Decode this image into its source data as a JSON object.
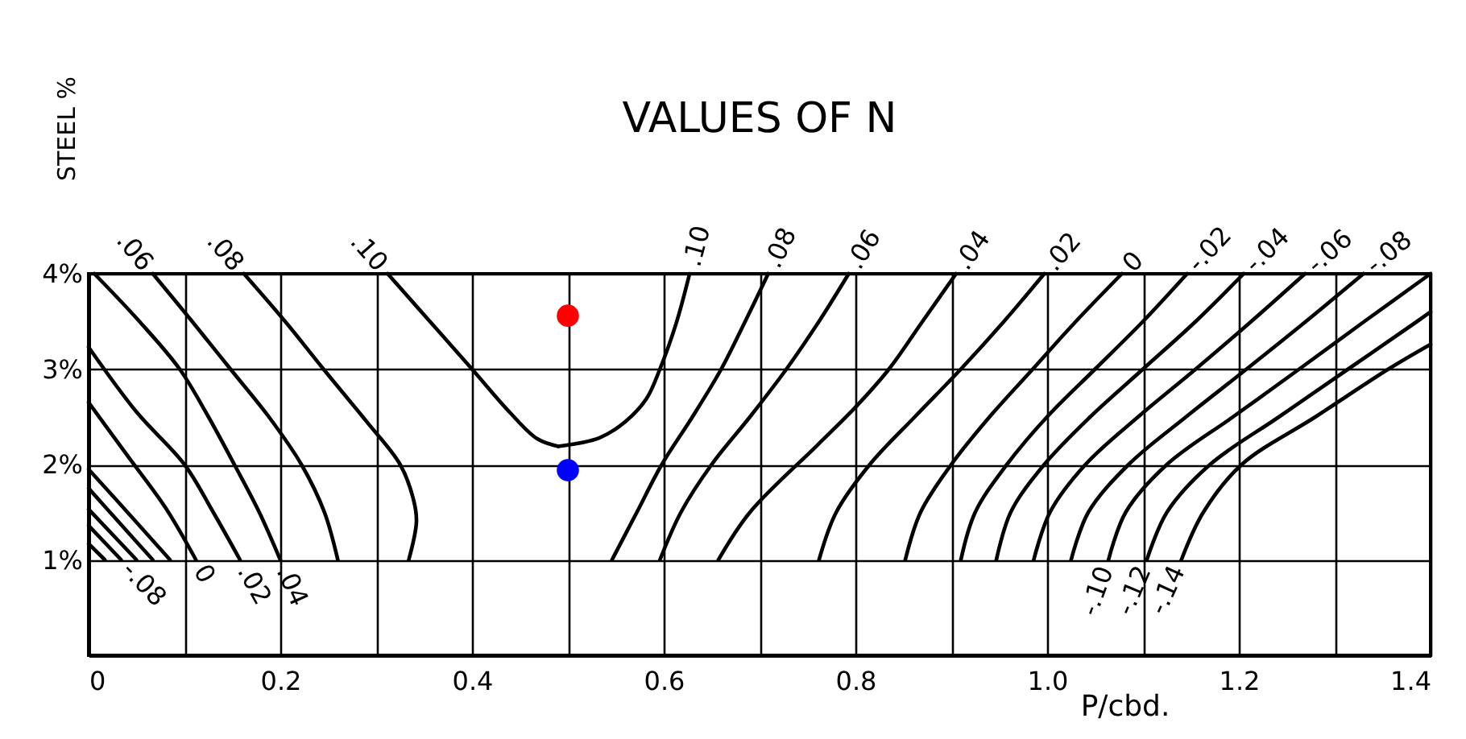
{
  "chart_data": {
    "type": "line",
    "title": "VALUES OF N",
    "xlabel": "P/cbd.",
    "ylabel": "STEEL %",
    "xlim": [
      0,
      1.4
    ],
    "ylim": [
      0,
      4
    ],
    "xticks": [
      0,
      {
        "value": 0.1,
        "label": null
      },
      0.2,
      {
        "value": 0.3,
        "label": null
      },
      0.4,
      {
        "value": 0.5,
        "label": null
      },
      0.6,
      {
        "value": 0.7,
        "label": null
      },
      0.8,
      {
        "value": 0.9,
        "label": null
      },
      {
        "value": 1,
        "label": "1.0"
      },
      {
        "value": 1.1,
        "label": null
      },
      1.2,
      {
        "value": 1.3,
        "label": null
      },
      1.4
    ],
    "yticks": [
      {
        "value": 1,
        "label": "1%"
      },
      {
        "value": 2,
        "label": "2%"
      },
      {
        "value": 3,
        "label": "3%"
      },
      {
        "value": 4,
        "label": "4%"
      }
    ],
    "grid": true,
    "line_style": "solid",
    "series": [
      {
        "name": ".10",
        "color": "#000000",
        "x": [
          0.312,
          0.356,
          0.4,
          0.44,
          0.468,
          0.49
        ],
        "values": [
          4.0,
          3.5,
          3.0,
          2.54,
          2.27,
          2.19
        ]
      },
      {
        "name": ".10",
        "color": "#000000",
        "x": [
          0.627,
          0.613,
          0.596,
          0.582,
          0.56,
          0.533,
          0.49
        ],
        "values": [
          4.0,
          3.48,
          3.0,
          2.69,
          2.45,
          2.28,
          2.19
        ]
      },
      {
        "name": ".08",
        "color": "#000000",
        "x": [
          0.162,
          0.205,
          0.245,
          0.29,
          0.325,
          0.339,
          0.342,
          0.334
        ],
        "values": [
          4.0,
          3.5,
          3.0,
          2.45,
          2.0,
          1.63,
          1.4,
          1.0
        ]
      },
      {
        "name": ".06",
        "color": "#000000",
        "x": [
          0.067,
          0.108,
          0.148,
          0.188,
          0.222,
          0.246,
          0.26
        ],
        "values": [
          4.0,
          3.5,
          3.0,
          2.5,
          2.0,
          1.5,
          1.0
        ]
      },
      {
        "name": ".04",
        "color": "#000000",
        "x": [
          0.2,
          0.178,
          0.152,
          0.125,
          0.095,
          0.053,
          0.006
        ],
        "values": [
          1.0,
          1.5,
          2.0,
          2.5,
          3.0,
          3.5,
          4.0
        ]
      },
      {
        "name": ".02",
        "color": "#000000",
        "x": [
          0.158,
          0.13,
          0.1,
          0.05,
          0
        ],
        "values": [
          1.0,
          1.5,
          2.0,
          2.55,
          3.23
        ]
      },
      {
        "name": "0",
        "color": "#000000",
        "x": [
          0.112,
          0.08,
          0.04,
          0
        ],
        "values": [
          1.0,
          1.55,
          2.1,
          2.65
        ]
      },
      {
        "color": "#000000",
        "x": [
          0.085,
          0.045,
          0
        ],
        "values": [
          1.0,
          1.45,
          1.95
        ]
      },
      {
        "color": "#000000",
        "x": [
          0.067,
          0.033,
          0
        ],
        "values": [
          1.0,
          1.38,
          1.75
        ]
      },
      {
        "color": "#000000",
        "x": [
          0.05,
          0
        ],
        "values": [
          1.0,
          1.53
        ]
      },
      {
        "name": "-.08",
        "color": "#000000",
        "x": [
          0.034,
          0
        ],
        "values": [
          1.0,
          1.36
        ]
      },
      {
        "color": "#000000",
        "x": [
          0.017,
          0
        ],
        "values": [
          1.0,
          1.17
        ]
      },
      {
        "name": ".08",
        "color": "#000000",
        "x": [
          0.709,
          0.685,
          0.66,
          0.63,
          0.598,
          0.572,
          0.546
        ],
        "values": [
          4.0,
          3.5,
          3.0,
          2.5,
          2.0,
          1.5,
          1.0
        ]
      },
      {
        "name": ".06",
        "color": "#000000",
        "x": [
          0.793,
          0.762,
          0.728,
          0.69,
          0.65,
          0.618,
          0.596
        ],
        "values": [
          4.0,
          3.5,
          3.0,
          2.5,
          2.0,
          1.5,
          1.0
        ]
      },
      {
        "name": ".04",
        "color": "#000000",
        "x": [
          0.905,
          0.87,
          0.835,
          0.8,
          0.76,
          0.69,
          0.657
        ],
        "values": [
          4.0,
          3.5,
          3.0,
          2.6,
          2.2,
          1.5,
          1.0
        ]
      },
      {
        "name": ".02",
        "color": "#000000",
        "x": [
          0.997,
          0.955,
          0.91,
          0.862,
          0.815,
          0.78,
          0.762
        ],
        "values": [
          4.0,
          3.5,
          3.0,
          2.5,
          2.0,
          1.5,
          1.0
        ]
      },
      {
        "name": "0",
        "color": "#000000",
        "x": [
          1.078,
          1.03,
          0.985,
          0.94,
          0.9,
          0.868,
          0.852
        ],
        "values": [
          4.0,
          3.5,
          3.0,
          2.5,
          2.0,
          1.5,
          1.0
        ]
      },
      {
        "name": "-.02",
        "color": "#000000",
        "x": [
          1.146,
          1.1,
          1.05,
          1.0,
          0.958,
          0.925,
          0.91
        ],
        "values": [
          4.0,
          3.5,
          3.0,
          2.5,
          2.0,
          1.5,
          1.0
        ]
      },
      {
        "name": "-.04",
        "color": "#000000",
        "x": [
          1.205,
          1.155,
          1.1,
          1.045,
          0.997,
          0.962,
          0.947
        ],
        "values": [
          4.0,
          3.5,
          3.0,
          2.5,
          2.0,
          1.5,
          1.0
        ]
      },
      {
        "name": "-.06",
        "color": "#000000",
        "x": [
          1.269,
          1.213,
          1.155,
          1.095,
          1.04,
          1.003,
          0.986
        ],
        "values": [
          4.0,
          3.5,
          3.0,
          2.5,
          2.0,
          1.5,
          1.0
        ]
      },
      {
        "name": "-.08",
        "color": "#000000",
        "x": [
          1.33,
          1.27,
          1.208,
          1.145,
          1.085,
          1.043,
          1.025
        ],
        "values": [
          4.0,
          3.5,
          3.0,
          2.5,
          2.0,
          1.5,
          1.0
        ]
      },
      {
        "name": "-.10",
        "color": "#000000",
        "x": [
          1.064,
          1.082,
          1.125,
          1.194,
          1.263,
          1.331,
          1.4
        ],
        "values": [
          1.0,
          1.5,
          2.0,
          2.5,
          3.0,
          3.5,
          4.0
        ]
      },
      {
        "name": "-.12",
        "color": "#000000",
        "x": [
          1.104,
          1.125,
          1.17,
          1.242,
          1.314,
          1.386,
          1.4
        ],
        "values": [
          1.0,
          1.5,
          2.0,
          2.5,
          3.0,
          3.5,
          3.6
        ]
      },
      {
        "name": "-.14",
        "color": "#000000",
        "x": [
          1.14,
          1.163,
          1.203,
          1.28,
          1.356,
          1.4
        ],
        "values": [
          1.0,
          1.5,
          2.0,
          2.5,
          3.0,
          3.26
        ]
      },
      {
        "type": "scatter",
        "marker": "circle",
        "color": "#ff0000",
        "x": [
          0.5
        ],
        "values": [
          3.56
        ]
      },
      {
        "type": "scatter",
        "marker": "circle",
        "color": "#0000ff",
        "x": [
          0.5
        ],
        "values": [
          1.94
        ]
      }
    ]
  }
}
